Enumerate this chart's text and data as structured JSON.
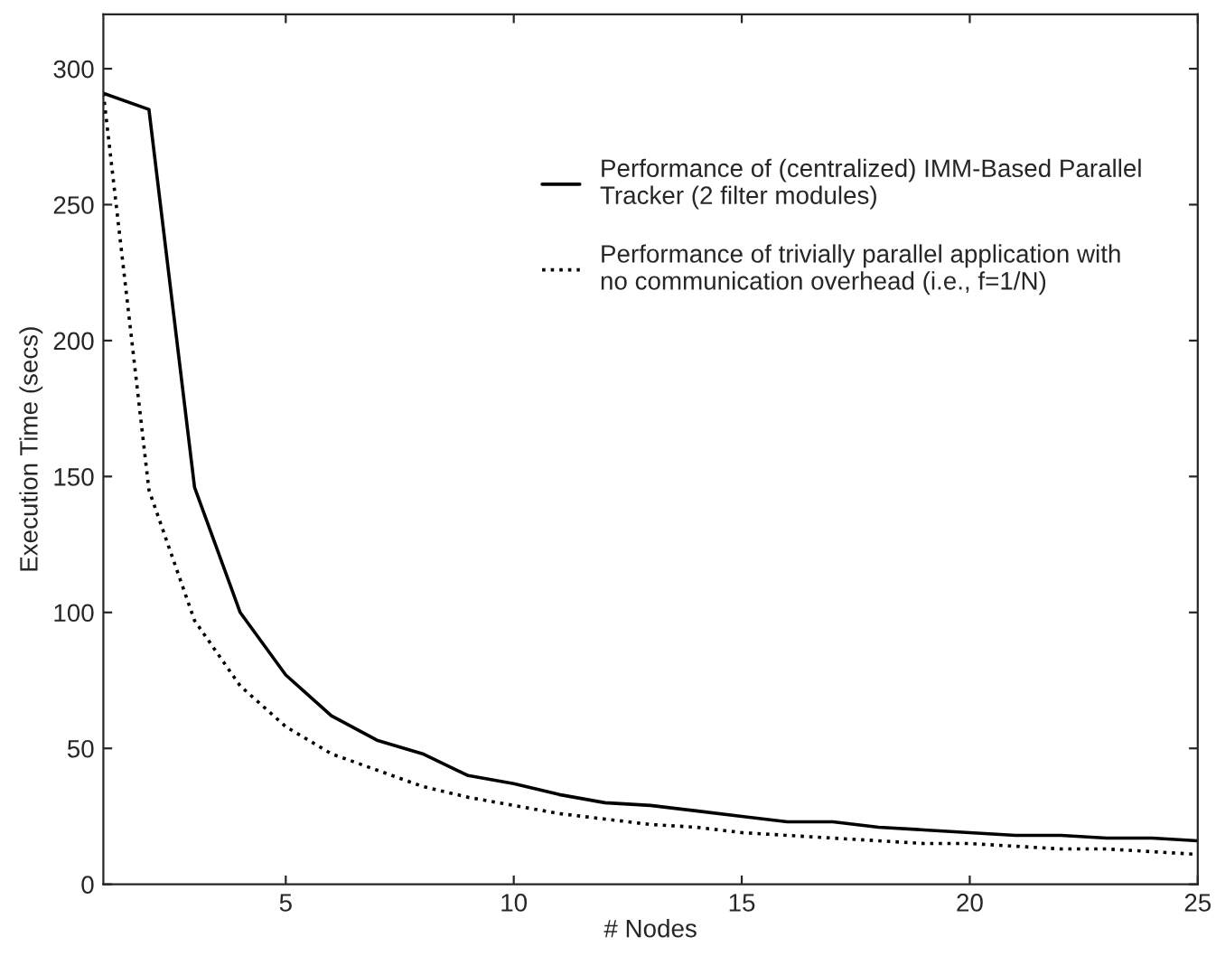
{
  "chart_data": {
    "type": "line",
    "xlabel": "# Nodes",
    "ylabel": "Execution Time (secs)",
    "x": [
      1,
      2,
      3,
      4,
      5,
      6,
      7,
      8,
      9,
      10,
      11,
      12,
      13,
      14,
      15,
      16,
      17,
      18,
      19,
      20,
      21,
      22,
      23,
      24,
      25
    ],
    "series": [
      {
        "name": "Performance of (centralized) IMM-Based Parallel\nTracker (2 filter modules)",
        "color": "#000000",
        "line_style": "solid",
        "values": [
          291,
          285,
          146,
          100,
          77,
          62,
          53,
          48,
          40,
          37,
          33,
          30,
          29,
          27,
          25,
          23,
          23,
          21,
          20,
          19,
          18,
          18,
          17,
          17,
          16
        ]
      },
      {
        "name": "Performance of trivially parallel application with\nno communication overhead (i.e., f=1/N)",
        "color": "#000000",
        "line_style": "dotted",
        "values": [
          291,
          145,
          97,
          73,
          58,
          48,
          42,
          36,
          32,
          29,
          26,
          24,
          22,
          21,
          19,
          18,
          17,
          16,
          15,
          15,
          14,
          13,
          13,
          12,
          11
        ]
      }
    ],
    "xlim": [
      1,
      25
    ],
    "xticks": [
      5,
      10,
      15,
      20,
      25
    ],
    "ylim": [
      0,
      320
    ],
    "yticks": [
      0,
      50,
      100,
      150,
      200,
      250,
      300
    ],
    "grid": false,
    "legend": "top right",
    "marker": "none"
  }
}
